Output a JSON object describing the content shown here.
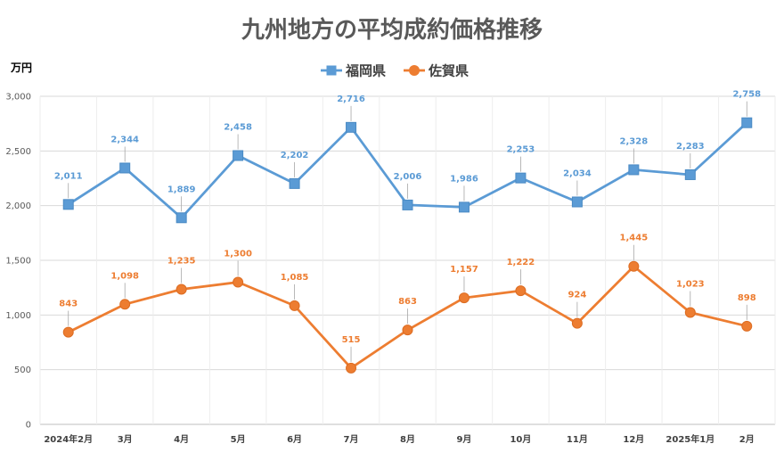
{
  "chart_data": {
    "type": "line",
    "title": "九州地方の平均成約価格推移",
    "unit_label": "万円",
    "categories": [
      "2024年2月",
      "3月",
      "4月",
      "5月",
      "6月",
      "7月",
      "8月",
      "9月",
      "10月",
      "11月",
      "12月",
      "2025年1月",
      "2月"
    ],
    "ylim": [
      0,
      3000
    ],
    "yticks": [
      0,
      500,
      1000,
      1500,
      2000,
      2500,
      3000
    ],
    "ytick_labels": [
      "0",
      "500",
      "1,000",
      "1,500",
      "2,000",
      "2,500",
      "3,000"
    ],
    "grid": true,
    "legend_position": "top",
    "series": [
      {
        "name": "福岡県",
        "color": "#5b9bd5",
        "marker": "square",
        "values": [
          2011,
          2344,
          1889,
          2458,
          2202,
          2716,
          2006,
          1986,
          2253,
          2034,
          2328,
          2283,
          2758
        ],
        "labels": [
          "2,011",
          "2,344",
          "1,889",
          "2,458",
          "2,202",
          "2,716",
          "2,006",
          "1,986",
          "2,253",
          "2,034",
          "2,328",
          "2,283",
          "2,758"
        ]
      },
      {
        "name": "佐賀県",
        "color": "#ed7d31",
        "marker": "circle",
        "values": [
          843,
          1098,
          1235,
          1300,
          1085,
          515,
          863,
          1157,
          1222,
          924,
          1445,
          1023,
          898
        ],
        "labels": [
          "843",
          "1,098",
          "1,235",
          "1,300",
          "1,085",
          "515",
          "863",
          "1,157",
          "1,222",
          "924",
          "1,445",
          "1,023",
          "898"
        ]
      }
    ]
  }
}
